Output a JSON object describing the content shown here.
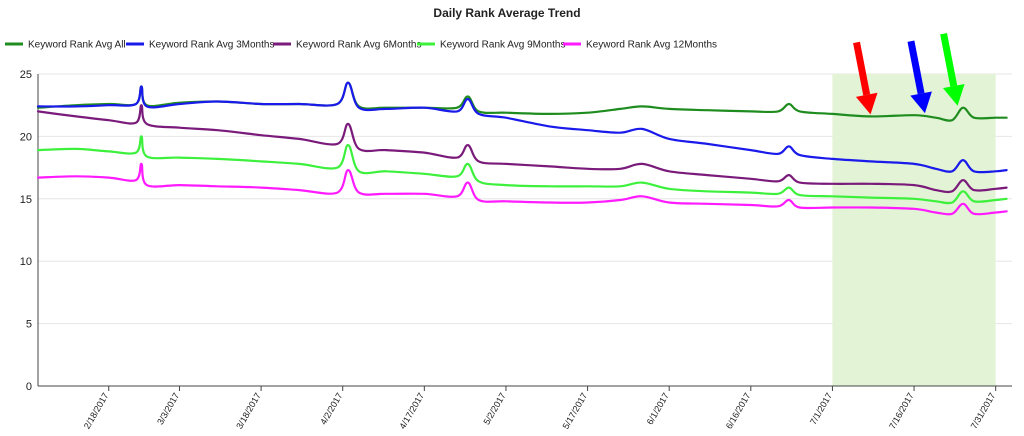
{
  "chart_data": {
    "type": "line",
    "title": "Daily Rank Average Trend",
    "xlabel": "",
    "ylabel": "",
    "ylim": [
      0,
      25
    ],
    "y_ticks": [
      0,
      5,
      10,
      15,
      20,
      25
    ],
    "x_start_date": "2017-02-05",
    "x_end_date": "2017-08-03",
    "x_tick_labels": [
      "2/18/2017",
      "3/3/2017",
      "3/18/2017",
      "4/2/2017",
      "4/17/2017",
      "5/2/2017",
      "5/17/2017",
      "6/1/2017",
      "6/16/2017",
      "7/1/2017",
      "7/16/2017",
      "7/31/2017"
    ],
    "x_tick_dates": [
      "2017-02-18",
      "2017-03-03",
      "2017-03-18",
      "2017-04-02",
      "2017-04-17",
      "2017-05-02",
      "2017-05-17",
      "2017-06-01",
      "2017-06-16",
      "2017-07-01",
      "2017-07-16",
      "2017-07-31"
    ],
    "grid": true,
    "legend_position": "top-left",
    "highlight_range": {
      "from": "2017-07-01",
      "to": "2017-07-31",
      "color": "#e2f3d6"
    },
    "annotations": [
      {
        "type": "arrow",
        "color": "#ff0000",
        "date": "2017-07-08",
        "value": 21.6
      },
      {
        "type": "arrow",
        "color": "#0000ff",
        "date": "2017-07-18",
        "value": 21.7
      },
      {
        "type": "arrow",
        "color": "#00ff00",
        "date": "2017-07-24",
        "value": 22.3
      }
    ],
    "series": [
      {
        "name": "Keyword Rank Avg All",
        "color": "#1e8c1e",
        "points": [
          [
            "2017-02-05",
            22.3
          ],
          [
            "2017-02-12",
            22.5
          ],
          [
            "2017-02-18",
            22.6
          ],
          [
            "2017-02-23",
            22.6
          ],
          [
            "2017-02-24",
            24.0
          ],
          [
            "2017-02-25",
            22.5
          ],
          [
            "2017-03-03",
            22.7
          ],
          [
            "2017-03-10",
            22.8
          ],
          [
            "2017-03-18",
            22.6
          ],
          [
            "2017-03-25",
            22.6
          ],
          [
            "2017-04-01",
            22.6
          ],
          [
            "2017-04-03",
            24.3
          ],
          [
            "2017-04-05",
            22.4
          ],
          [
            "2017-04-10",
            22.3
          ],
          [
            "2017-04-17",
            22.3
          ],
          [
            "2017-04-23",
            22.3
          ],
          [
            "2017-04-25",
            23.2
          ],
          [
            "2017-04-27",
            22.0
          ],
          [
            "2017-05-02",
            21.9
          ],
          [
            "2017-05-10",
            21.8
          ],
          [
            "2017-05-17",
            21.9
          ],
          [
            "2017-05-23",
            22.2
          ],
          [
            "2017-05-27",
            22.4
          ],
          [
            "2017-06-01",
            22.2
          ],
          [
            "2017-06-08",
            22.1
          ],
          [
            "2017-06-16",
            22.0
          ],
          [
            "2017-06-21",
            22.0
          ],
          [
            "2017-06-23",
            22.6
          ],
          [
            "2017-06-25",
            22.0
          ],
          [
            "2017-07-01",
            21.8
          ],
          [
            "2017-07-08",
            21.6
          ],
          [
            "2017-07-16",
            21.7
          ],
          [
            "2017-07-20",
            21.5
          ],
          [
            "2017-07-23",
            21.3
          ],
          [
            "2017-07-25",
            22.3
          ],
          [
            "2017-07-27",
            21.5
          ],
          [
            "2017-07-31",
            21.5
          ],
          [
            "2017-08-02",
            21.5
          ]
        ]
      },
      {
        "name": "Keyword Rank Avg 3Months",
        "color": "#1a1aeb",
        "points": [
          [
            "2017-02-05",
            22.4
          ],
          [
            "2017-02-12",
            22.4
          ],
          [
            "2017-02-18",
            22.5
          ],
          [
            "2017-02-23",
            22.6
          ],
          [
            "2017-02-24",
            24.0
          ],
          [
            "2017-02-25",
            22.4
          ],
          [
            "2017-03-03",
            22.6
          ],
          [
            "2017-03-10",
            22.8
          ],
          [
            "2017-03-18",
            22.6
          ],
          [
            "2017-03-25",
            22.6
          ],
          [
            "2017-04-01",
            22.6
          ],
          [
            "2017-04-03",
            24.3
          ],
          [
            "2017-04-05",
            22.3
          ],
          [
            "2017-04-10",
            22.2
          ],
          [
            "2017-04-17",
            22.3
          ],
          [
            "2017-04-23",
            22.0
          ],
          [
            "2017-04-25",
            23.0
          ],
          [
            "2017-04-27",
            21.8
          ],
          [
            "2017-05-02",
            21.5
          ],
          [
            "2017-05-10",
            20.8
          ],
          [
            "2017-05-17",
            20.5
          ],
          [
            "2017-05-23",
            20.3
          ],
          [
            "2017-05-27",
            20.6
          ],
          [
            "2017-06-01",
            19.8
          ],
          [
            "2017-06-08",
            19.4
          ],
          [
            "2017-06-16",
            18.9
          ],
          [
            "2017-06-21",
            18.6
          ],
          [
            "2017-06-23",
            19.2
          ],
          [
            "2017-06-25",
            18.5
          ],
          [
            "2017-07-01",
            18.2
          ],
          [
            "2017-07-08",
            18.0
          ],
          [
            "2017-07-16",
            17.8
          ],
          [
            "2017-07-20",
            17.4
          ],
          [
            "2017-07-23",
            17.2
          ],
          [
            "2017-07-25",
            18.1
          ],
          [
            "2017-07-27",
            17.2
          ],
          [
            "2017-07-31",
            17.2
          ],
          [
            "2017-08-02",
            17.3
          ]
        ]
      },
      {
        "name": "Keyword Rank Avg 6Months",
        "color": "#7a1a7a",
        "points": [
          [
            "2017-02-05",
            22.0
          ],
          [
            "2017-02-12",
            21.6
          ],
          [
            "2017-02-18",
            21.3
          ],
          [
            "2017-02-23",
            21.1
          ],
          [
            "2017-02-24",
            22.5
          ],
          [
            "2017-02-25",
            21.0
          ],
          [
            "2017-03-03",
            20.7
          ],
          [
            "2017-03-10",
            20.5
          ],
          [
            "2017-03-18",
            20.1
          ],
          [
            "2017-03-25",
            19.8
          ],
          [
            "2017-04-01",
            19.4
          ],
          [
            "2017-04-03",
            21.0
          ],
          [
            "2017-04-05",
            19.0
          ],
          [
            "2017-04-10",
            18.9
          ],
          [
            "2017-04-17",
            18.7
          ],
          [
            "2017-04-23",
            18.3
          ],
          [
            "2017-04-25",
            19.3
          ],
          [
            "2017-04-27",
            18.0
          ],
          [
            "2017-05-02",
            17.8
          ],
          [
            "2017-05-10",
            17.6
          ],
          [
            "2017-05-17",
            17.4
          ],
          [
            "2017-05-23",
            17.4
          ],
          [
            "2017-05-27",
            17.8
          ],
          [
            "2017-06-01",
            17.2
          ],
          [
            "2017-06-08",
            16.9
          ],
          [
            "2017-06-16",
            16.6
          ],
          [
            "2017-06-21",
            16.4
          ],
          [
            "2017-06-23",
            16.9
          ],
          [
            "2017-06-25",
            16.3
          ],
          [
            "2017-07-01",
            16.2
          ],
          [
            "2017-07-08",
            16.2
          ],
          [
            "2017-07-16",
            16.1
          ],
          [
            "2017-07-20",
            15.7
          ],
          [
            "2017-07-23",
            15.6
          ],
          [
            "2017-07-25",
            16.5
          ],
          [
            "2017-07-27",
            15.7
          ],
          [
            "2017-07-31",
            15.8
          ],
          [
            "2017-08-02",
            15.9
          ]
        ]
      },
      {
        "name": "Keyword Rank Avg 9Months",
        "color": "#3cf03c",
        "points": [
          [
            "2017-02-05",
            18.9
          ],
          [
            "2017-02-12",
            19.0
          ],
          [
            "2017-02-18",
            18.8
          ],
          [
            "2017-02-23",
            18.7
          ],
          [
            "2017-02-24",
            20.0
          ],
          [
            "2017-02-25",
            18.4
          ],
          [
            "2017-03-03",
            18.3
          ],
          [
            "2017-03-10",
            18.2
          ],
          [
            "2017-03-18",
            18.0
          ],
          [
            "2017-03-25",
            17.8
          ],
          [
            "2017-04-01",
            17.5
          ],
          [
            "2017-04-03",
            19.3
          ],
          [
            "2017-04-05",
            17.2
          ],
          [
            "2017-04-10",
            17.2
          ],
          [
            "2017-04-17",
            17.0
          ],
          [
            "2017-04-23",
            16.8
          ],
          [
            "2017-04-25",
            17.8
          ],
          [
            "2017-04-27",
            16.4
          ],
          [
            "2017-05-02",
            16.1
          ],
          [
            "2017-05-10",
            16.0
          ],
          [
            "2017-05-17",
            16.0
          ],
          [
            "2017-05-23",
            16.0
          ],
          [
            "2017-05-27",
            16.3
          ],
          [
            "2017-06-01",
            15.8
          ],
          [
            "2017-06-08",
            15.6
          ],
          [
            "2017-06-16",
            15.5
          ],
          [
            "2017-06-21",
            15.4
          ],
          [
            "2017-06-23",
            15.9
          ],
          [
            "2017-06-25",
            15.3
          ],
          [
            "2017-07-01",
            15.2
          ],
          [
            "2017-07-08",
            15.1
          ],
          [
            "2017-07-16",
            15.0
          ],
          [
            "2017-07-20",
            14.8
          ],
          [
            "2017-07-23",
            14.7
          ],
          [
            "2017-07-25",
            15.6
          ],
          [
            "2017-07-27",
            14.8
          ],
          [
            "2017-07-31",
            14.9
          ],
          [
            "2017-08-02",
            15.0
          ]
        ]
      },
      {
        "name": "Keyword Rank Avg 12Months",
        "color": "#ff1aff",
        "points": [
          [
            "2017-02-05",
            16.7
          ],
          [
            "2017-02-12",
            16.8
          ],
          [
            "2017-02-18",
            16.7
          ],
          [
            "2017-02-23",
            16.5
          ],
          [
            "2017-02-24",
            17.8
          ],
          [
            "2017-02-25",
            16.1
          ],
          [
            "2017-03-03",
            16.1
          ],
          [
            "2017-03-10",
            16.0
          ],
          [
            "2017-03-18",
            15.9
          ],
          [
            "2017-03-25",
            15.7
          ],
          [
            "2017-04-01",
            15.5
          ],
          [
            "2017-04-03",
            17.3
          ],
          [
            "2017-04-05",
            15.5
          ],
          [
            "2017-04-10",
            15.4
          ],
          [
            "2017-04-17",
            15.4
          ],
          [
            "2017-04-23",
            15.2
          ],
          [
            "2017-04-25",
            16.3
          ],
          [
            "2017-04-27",
            14.9
          ],
          [
            "2017-05-02",
            14.8
          ],
          [
            "2017-05-10",
            14.7
          ],
          [
            "2017-05-17",
            14.7
          ],
          [
            "2017-05-23",
            14.9
          ],
          [
            "2017-05-27",
            15.2
          ],
          [
            "2017-06-01",
            14.7
          ],
          [
            "2017-06-08",
            14.6
          ],
          [
            "2017-06-16",
            14.5
          ],
          [
            "2017-06-21",
            14.4
          ],
          [
            "2017-06-23",
            14.9
          ],
          [
            "2017-06-25",
            14.3
          ],
          [
            "2017-07-01",
            14.3
          ],
          [
            "2017-07-08",
            14.3
          ],
          [
            "2017-07-16",
            14.2
          ],
          [
            "2017-07-20",
            13.9
          ],
          [
            "2017-07-23",
            13.8
          ],
          [
            "2017-07-25",
            14.6
          ],
          [
            "2017-07-27",
            13.8
          ],
          [
            "2017-07-31",
            13.9
          ],
          [
            "2017-08-02",
            14.0
          ]
        ]
      }
    ]
  }
}
